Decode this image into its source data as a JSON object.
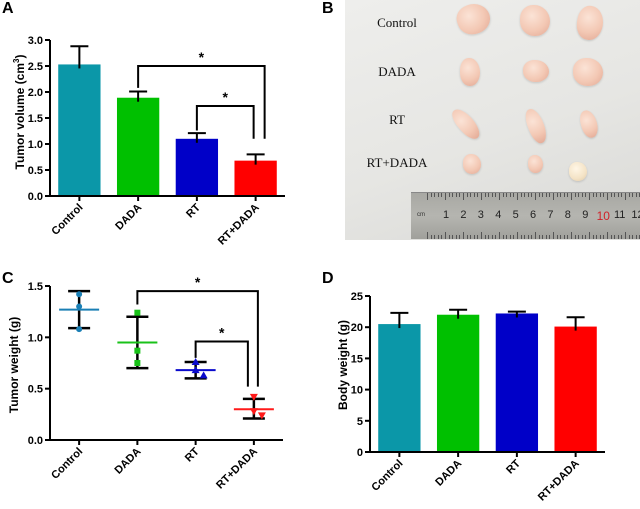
{
  "panels": {
    "A": {
      "letter": "A"
    },
    "B": {
      "letter": "B"
    },
    "C": {
      "letter": "C"
    },
    "D": {
      "letter": "D"
    }
  },
  "photo": {
    "row_labels": [
      "Control",
      "DADA",
      "RT",
      "RT+DADA"
    ],
    "ruler": {
      "unit": "cm",
      "numbers": [
        "1",
        "2",
        "3",
        "4",
        "5",
        "6",
        "7",
        "8",
        "9",
        "10",
        "11",
        "12"
      ],
      "highlight": "10",
      "highlight_color": "#d0222a"
    }
  },
  "chart_data": [
    {
      "id": "A",
      "type": "bar",
      "title": "",
      "xlabel": "",
      "ylabel": "Tumor volume (cm³)",
      "ylabel_main": "Tumor volume (cm",
      "ylabel_sup": "3",
      "ylabel_end": ")",
      "categories": [
        "Control",
        "DADA",
        "RT",
        "RT+DADA"
      ],
      "values": [
        2.53,
        1.89,
        1.1,
        0.68
      ],
      "error_upper": [
        2.88,
        2.01,
        1.21,
        0.8
      ],
      "colors": [
        "#0b97a8",
        "#00c000",
        "#0000c8",
        "#ff0000"
      ],
      "ylim": [
        0,
        3.0
      ],
      "yticks": [
        "0.0",
        "0.5",
        "1.0",
        "1.5",
        "2.0",
        "2.5",
        "3.0"
      ],
      "significance": [
        {
          "from": "DADA",
          "to": "RT+DADA",
          "label": "*"
        },
        {
          "from": "RT",
          "to": "RT+DADA",
          "label": "*"
        }
      ],
      "grid": false
    },
    {
      "id": "C",
      "type": "scatter",
      "title": "",
      "xlabel": "",
      "ylabel": "Tumor weight (g)",
      "categories": [
        "Control",
        "DADA",
        "RT",
        "RT+DADA"
      ],
      "means": [
        1.27,
        0.95,
        0.68,
        0.3
      ],
      "error_low": [
        1.09,
        0.7,
        0.6,
        0.21
      ],
      "error_high": [
        1.45,
        1.2,
        0.76,
        0.4
      ],
      "points": [
        [
          1.42,
          1.3,
          1.08
        ],
        [
          1.24,
          0.87,
          0.75
        ],
        [
          0.76,
          0.68,
          0.63
        ],
        [
          0.42,
          0.28,
          0.24
        ]
      ],
      "markers": [
        "circle",
        "square",
        "triangle-up",
        "triangle-down"
      ],
      "colors": [
        "#1a7fb5",
        "#19c219",
        "#0a0acc",
        "#ff1a1a"
      ],
      "ylim": [
        0,
        1.5
      ],
      "yticks": [
        "0.0",
        "0.5",
        "1.0",
        "1.5"
      ],
      "significance": [
        {
          "from": "DADA",
          "to": "RT+DADA",
          "label": "*"
        },
        {
          "from": "RT",
          "to": "RT+DADA",
          "label": "*"
        }
      ],
      "grid": false
    },
    {
      "id": "D",
      "type": "bar",
      "title": "",
      "xlabel": "",
      "ylabel": "Body weight (g)",
      "categories": [
        "Control",
        "DADA",
        "RT",
        "RT+DADA"
      ],
      "values": [
        20.5,
        22.0,
        22.2,
        20.1
      ],
      "error_upper": [
        22.3,
        22.8,
        22.5,
        21.6
      ],
      "colors": [
        "#0b97a8",
        "#00c000",
        "#0000c8",
        "#ff0000"
      ],
      "ylim": [
        0,
        25
      ],
      "yticks": [
        "0",
        "5",
        "10",
        "15",
        "20",
        "25"
      ],
      "grid": false
    }
  ]
}
